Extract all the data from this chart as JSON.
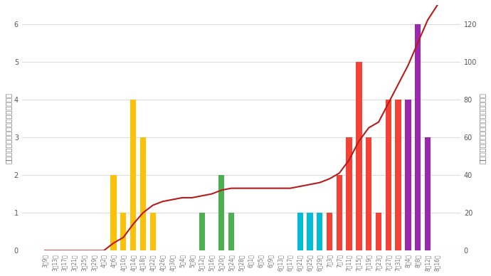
{
  "dates": [
    "3月9日",
    "3月13日",
    "3月17日",
    "3月21日",
    "3月25日",
    "3月29日",
    "4月2日",
    "4月6日",
    "4月10日",
    "4月14日",
    "4月18日",
    "4月22日",
    "4月26日",
    "4月30日",
    "5月4日",
    "5月8日",
    "5月12日",
    "5月16日",
    "5月20日",
    "5月24日",
    "5月28日",
    "6月1日",
    "6月5日",
    "6月9日",
    "6月13日",
    "6月17日",
    "6月21日",
    "6月25日",
    "6月29日",
    "7月3日",
    "7月7日",
    "7月11日",
    "7月15日",
    "7月19日",
    "7月23日",
    "7月27日",
    "7月31日",
    "8月4日",
    "8月8日",
    "8月12日",
    "8月16日"
  ],
  "daily_counts": [
    0,
    0,
    0,
    0,
    0,
    0,
    0,
    2,
    1,
    4,
    3,
    1,
    0,
    0,
    0,
    0,
    1,
    0,
    2,
    1,
    0,
    0,
    0,
    0,
    0,
    0,
    1,
    1,
    1,
    1,
    2,
    3,
    5,
    3,
    1,
    4,
    4,
    4,
    6,
    3,
    0
  ],
  "cumulative": [
    0,
    0,
    0,
    0,
    0,
    0,
    0,
    4,
    7,
    14,
    20,
    24,
    26,
    27,
    28,
    28,
    29,
    30,
    32,
    33,
    33,
    33,
    33,
    33,
    33,
    33,
    34,
    35,
    36,
    38,
    41,
    48,
    58,
    65,
    68,
    78,
    88,
    98,
    110,
    122,
    130
  ],
  "bar_colors_by_group": {
    "3月": "#e91e8c",
    "4月": "#ffc107",
    "5月": "#4caf50",
    "6月": "#00bcd4",
    "7月": "#f44336",
    "8月": "#9c27b0"
  },
  "line_color": "#b71c1c",
  "left_ylabel": "棒グラフ：日毎の陽性確認者数（人）",
  "right_ylabel": "折れ線：陽性確認者の累計人数（人）",
  "left_ylim": [
    0,
    6.5
  ],
  "right_ylim": [
    0,
    130
  ],
  "left_yticks": [
    0,
    1,
    2,
    3,
    4,
    5,
    6
  ],
  "right_yticks": [
    0,
    20,
    40,
    60,
    80,
    100,
    120
  ],
  "grid_color": "#dddddd",
  "background_color": "#ffffff"
}
